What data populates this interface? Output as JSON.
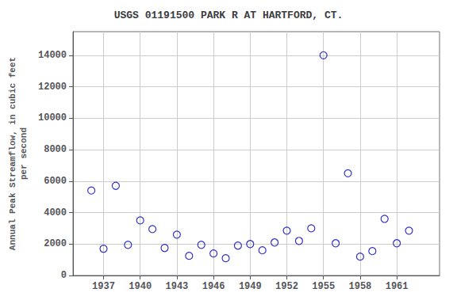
{
  "chart_data": {
    "type": "scatter",
    "title": "USGS 01191500 PARK R AT HARTFORD, CT.",
    "ylabel": "Annual Peak Streamflow, in cubic feet\nper second",
    "x": [
      1936,
      1937,
      1938,
      1939,
      1940,
      1941,
      1942,
      1943,
      1944,
      1945,
      1946,
      1947,
      1948,
      1949,
      1950,
      1951,
      1952,
      1953,
      1954,
      1955,
      1956,
      1957,
      1958,
      1959,
      1960,
      1961,
      1962
    ],
    "values": [
      5400,
      1700,
      5700,
      1950,
      3500,
      2950,
      1750,
      2600,
      1250,
      1950,
      1400,
      1100,
      1900,
      2000,
      1600,
      2100,
      2850,
      2200,
      3000,
      14000,
      2050,
      6500,
      1200,
      1550,
      3600,
      2050,
      2850
    ],
    "xlim": [
      1934.5,
      1964.5
    ],
    "xticks": [
      1937,
      1940,
      1943,
      1946,
      1949,
      1952,
      1955,
      1958,
      1961
    ],
    "ylim": [
      0,
      15500
    ],
    "yticks": [
      0,
      2000,
      4000,
      6000,
      8000,
      10000,
      12000,
      14000
    ],
    "color": "#0000bb",
    "marker": "circle",
    "grid": true
  }
}
